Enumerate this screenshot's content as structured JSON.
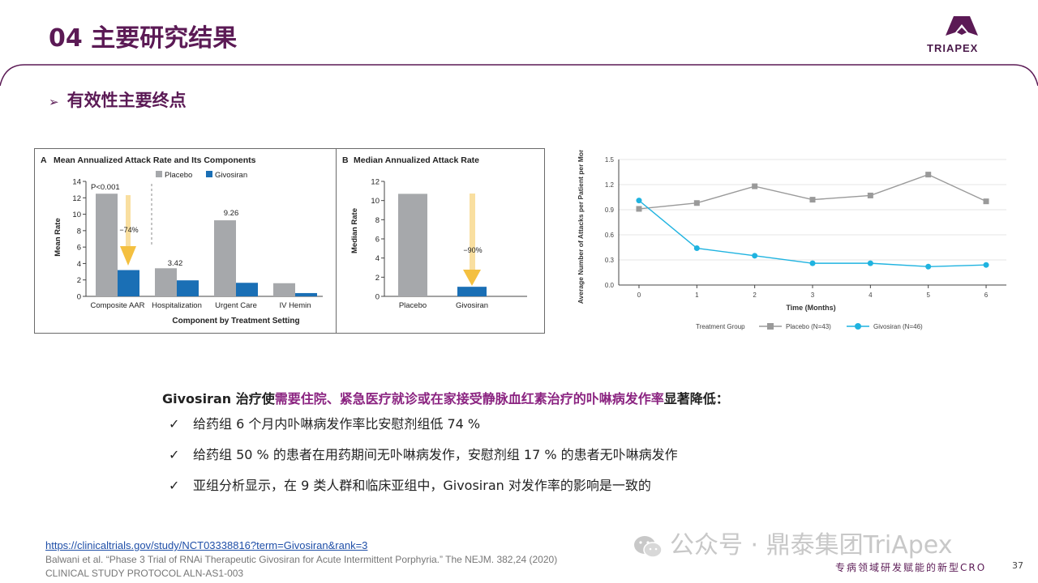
{
  "header": {
    "title": "04 主要研究结果",
    "subtitle": "有效性主要终点",
    "logo_text": "TRIAPEX",
    "brand_color": "#5b1a55"
  },
  "chart_data": [
    {
      "type": "bar",
      "panel_letter": "A",
      "title": "Mean Annualized Attack Rate and Its Components",
      "ylabel": "Mean Rate",
      "xlabel": "Component by Treatment Setting",
      "ylim": [
        0,
        14
      ],
      "yticks": [
        "0",
        "2",
        "4",
        "6",
        "8",
        "10",
        "12",
        "14"
      ],
      "categories": [
        "Composite AAR",
        "Hospitalization",
        "Urgent Care",
        "IV Hemin"
      ],
      "series": [
        {
          "name": "Placebo",
          "color": "#a6a8ab",
          "values": [
            12.5,
            3.42,
            9.26,
            1.6
          ]
        },
        {
          "name": "Givosiran",
          "color": "#1a6fb5",
          "values": [
            3.2,
            1.95,
            1.65,
            0.4
          ]
        }
      ],
      "data_labels": {
        "hospitalization": "3.42",
        "urgent_care": "9.26"
      },
      "annotations": {
        "p_value": "P<0.001",
        "reduction": "−74%"
      },
      "legend": "top"
    },
    {
      "type": "bar",
      "panel_letter": "B",
      "title": "Median Annualized Attack Rate",
      "ylabel": "Median Rate",
      "ylim": [
        0,
        12
      ],
      "yticks": [
        "0",
        "2",
        "4",
        "6",
        "8",
        "10",
        "12"
      ],
      "categories": [
        "Placebo",
        "Givosiran"
      ],
      "values": [
        10.7,
        1.0
      ],
      "colors": [
        "#a6a8ab",
        "#1a6fb5"
      ],
      "annotations": {
        "reduction": "−90%"
      }
    },
    {
      "type": "line",
      "ylabel": "Average Number of Attacks per Patient per Month",
      "xlabel": "Time (Months)",
      "x": [
        0,
        1,
        2,
        3,
        4,
        5,
        6
      ],
      "xticks": [
        "0",
        "1",
        "2",
        "3",
        "4",
        "5",
        "6"
      ],
      "ylim": [
        0,
        1.5
      ],
      "yticks": [
        "0.0",
        "0.3",
        "0.6",
        "0.9",
        "1.2",
        "1.5"
      ],
      "grid": true,
      "legend_title": "Treatment Group",
      "series": [
        {
          "name": "Placebo (N=43)",
          "color": "#9a9a9a",
          "marker": "square",
          "values": [
            0.91,
            0.98,
            1.18,
            1.02,
            1.07,
            1.32,
            1.0
          ]
        },
        {
          "name": "Givosiran (N=46)",
          "color": "#1fb3e0",
          "marker": "circle",
          "values": [
            1.01,
            0.44,
            0.35,
            0.26,
            0.26,
            0.22,
            0.24
          ]
        }
      ]
    }
  ],
  "summary": {
    "lead": "Givosiran 治疗使",
    "highlight": "需要住院、紧急医疗就诊或在家接受静脉血红素治疗的卟啉病发作率",
    "tail": "显著降低："
  },
  "bullets": [
    {
      "icon": "check-icon",
      "text": "给药组 6 个月内卟啉病发作率比安慰剂组低 74 %"
    },
    {
      "icon": "check-icon",
      "text": "给药组 50 % 的患者在用药期间无卟啉病发作，安慰剂组 17 % 的患者无卟啉病发作"
    },
    {
      "icon": "check-icon",
      "text": "亚组分析显示，在 9 类人群和临床亚组中，Givosiran 对发作率的影响是一致的"
    }
  ],
  "references": {
    "link": "https://clinicaltrials.gov/study/NCT03338816?term=Givosiran&rank=3",
    "citation": "Balwani et al. “Phase 3 Trial of RNAi Therapeutic Givosiran for Acute Intermittent Porphyria.” The NEJM. 382,24 (2020)",
    "protocol": "CLINICAL STUDY PROTOCOL  ALN-AS1-003"
  },
  "watermark": "公众号 · 鼎泰集团TriApex",
  "footer": {
    "slogan": "专病领域研发赋能的新型CRO",
    "page_number": "37"
  }
}
